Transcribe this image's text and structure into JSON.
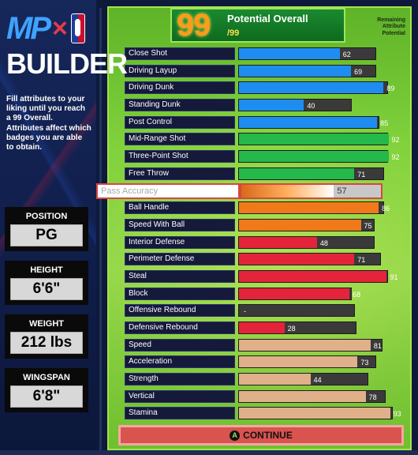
{
  "brand": {
    "mp": "MP",
    "x": "×",
    "builder": "BUILDER"
  },
  "description": "Fill attributes to your liking until you reach a 99 Overall. Attributes affect which badges you are able to obtain.",
  "info": [
    {
      "label": "POSITION",
      "value": "PG"
    },
    {
      "label": "HEIGHT",
      "value": "6'6\""
    },
    {
      "label": "WEIGHT",
      "value": "212 lbs"
    },
    {
      "label": "WINGSPAN",
      "value": "6'8\""
    }
  ],
  "header": {
    "overall": "99",
    "title": "Potential Overall",
    "max": "/99",
    "remaining": "Remaining Attribute Potential"
  },
  "attributes": [
    {
      "name": "Close Shot",
      "value": 62,
      "max": 85,
      "color": "#1f8df0"
    },
    {
      "name": "Driving Layup",
      "value": 69,
      "max": 85,
      "color": "#1f8df0"
    },
    {
      "name": "Driving Dunk",
      "value": 89,
      "max": 92,
      "color": "#1f8df0"
    },
    {
      "name": "Standing Dunk",
      "value": 40,
      "max": 70,
      "color": "#1f8df0"
    },
    {
      "name": "Post Control",
      "value": 85,
      "max": 87,
      "color": "#1f8df0"
    },
    {
      "name": "Mid-Range Shot",
      "value": 92,
      "max": 92,
      "color": "#25b84a"
    },
    {
      "name": "Three-Point Shot",
      "value": 92,
      "max": 92,
      "color": "#25b84a"
    },
    {
      "name": "Free Throw",
      "value": 71,
      "max": 90,
      "color": "#25b84a"
    },
    {
      "name": "Pass Accuracy",
      "value": 57,
      "max": 88,
      "color": "#e87a1f",
      "selected": true
    },
    {
      "name": "Ball Handle",
      "value": 86,
      "max": 90,
      "color": "#f07a1a"
    },
    {
      "name": "Speed With Ball",
      "value": 75,
      "max": 84,
      "color": "#f07a1a"
    },
    {
      "name": "Interior Defense",
      "value": 48,
      "max": 84,
      "color": "#e3243b"
    },
    {
      "name": "Perimeter Defense",
      "value": 71,
      "max": 88,
      "color": "#e3243b"
    },
    {
      "name": "Steal",
      "value": 91,
      "max": 92,
      "color": "#e3243b"
    },
    {
      "name": "Block",
      "value": 68,
      "max": 70,
      "color": "#e3243b"
    },
    {
      "name": "Offensive Rebound",
      "value": "-",
      "max": 72,
      "color": "#e3243b"
    },
    {
      "name": "Defensive Rebound",
      "value": 28,
      "max": 73,
      "color": "#e3243b"
    },
    {
      "name": "Speed",
      "value": 81,
      "max": 89,
      "color": "#e0b08a"
    },
    {
      "name": "Acceleration",
      "value": 73,
      "max": 85,
      "color": "#e0b08a"
    },
    {
      "name": "Strength",
      "value": 44,
      "max": 80,
      "color": "#e0b08a"
    },
    {
      "name": "Vertical",
      "value": 78,
      "max": 91,
      "color": "#e0b08a"
    },
    {
      "name": "Stamina",
      "value": 93,
      "max": 95,
      "color": "#e0b08a"
    }
  ],
  "continue": {
    "icon": "A",
    "label": "CONTINUE"
  }
}
